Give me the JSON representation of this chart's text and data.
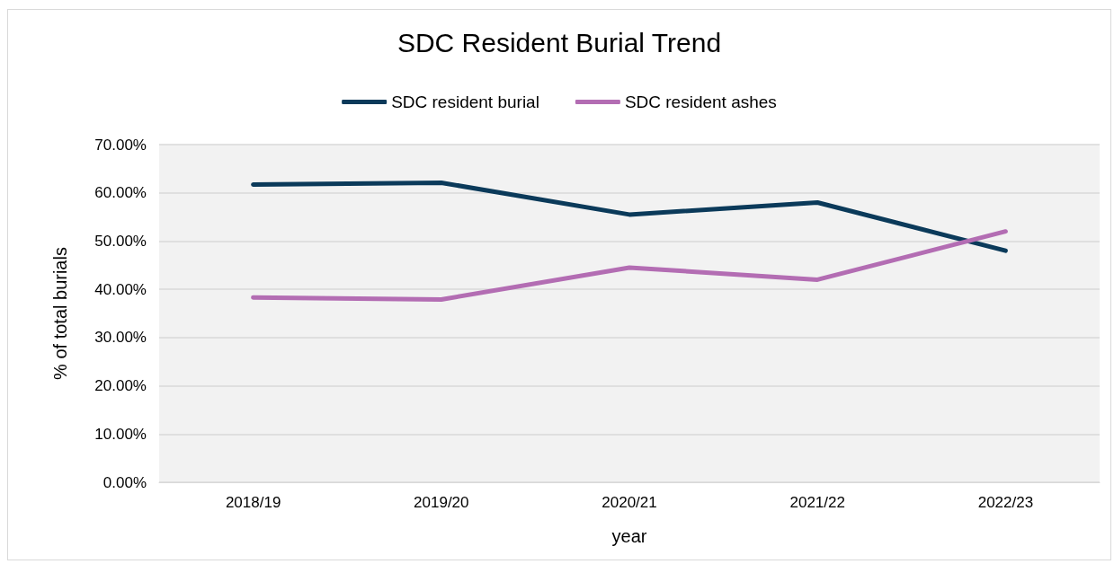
{
  "chart_data": {
    "type": "line",
    "title": "SDC Resident Burial Trend",
    "xlabel": "year",
    "ylabel": "% of total burials",
    "categories": [
      "2018/19",
      "2019/20",
      "2020/21",
      "2021/22",
      "2022/23"
    ],
    "series": [
      {
        "name": "SDC resident burial",
        "color": "#0b3a5a",
        "values": [
          61.7,
          62.1,
          55.5,
          58.0,
          48.0
        ]
      },
      {
        "name": "SDC resident ashes",
        "color": "#b36db3",
        "values": [
          38.3,
          37.9,
          44.5,
          42.0,
          52.0
        ]
      }
    ],
    "ylim": [
      0,
      70
    ],
    "yticks": [
      {
        "value": 0,
        "label": "0.00%"
      },
      {
        "value": 10,
        "label": "10.00%"
      },
      {
        "value": 20,
        "label": "20.00%"
      },
      {
        "value": 30,
        "label": "30.00%"
      },
      {
        "value": 40,
        "label": "40.00%"
      },
      {
        "value": 50,
        "label": "50.00%"
      },
      {
        "value": 60,
        "label": "60.00%"
      },
      {
        "value": 70,
        "label": "70.00%"
      }
    ],
    "grid": "y",
    "legend": "top",
    "marker": "none",
    "line_style": "solid"
  }
}
